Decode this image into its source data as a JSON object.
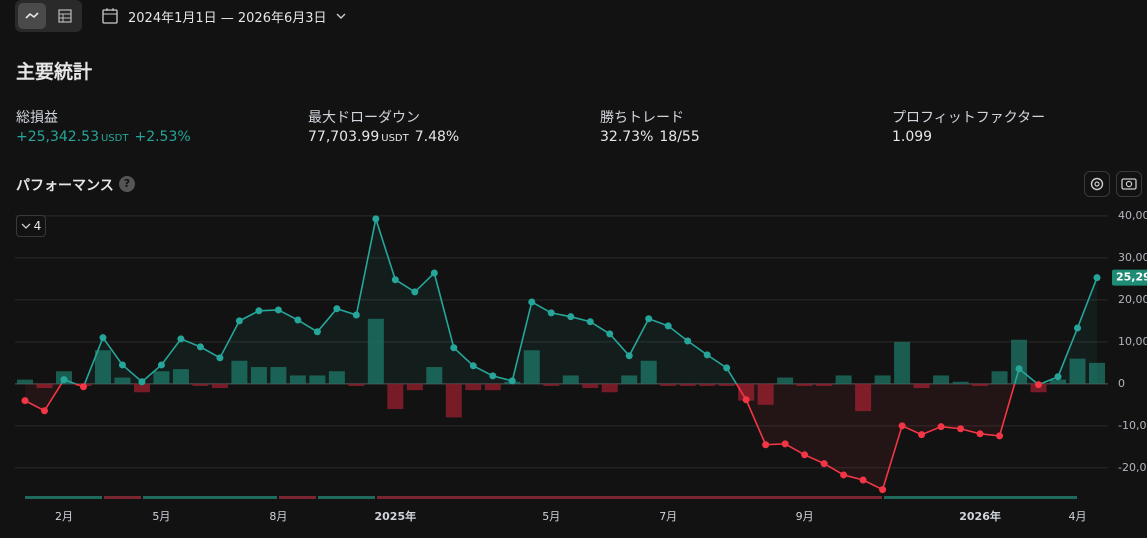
{
  "toolbar": {
    "date_range": "2024年1月1日 — 2026年6月3日"
  },
  "stats": {
    "title": "主要統計",
    "items": [
      {
        "label": "総損益",
        "value": "+25,342.53",
        "unit": "USDT",
        "change": "+2.53%"
      },
      {
        "label": "最大ドローダウン",
        "value": "77,703.99",
        "unit": "USDT",
        "change": "7.48%"
      },
      {
        "label": "勝ちトレード",
        "value": "32.73%",
        "change": "18/55"
      },
      {
        "label": "プロフィットファクター",
        "value": "1.099"
      }
    ]
  },
  "performance": {
    "title": "パフォーマンス",
    "help": "?",
    "selector": "4"
  },
  "chart_data": {
    "type": "line",
    "categories": [
      null,
      null,
      "2月",
      null,
      null,
      null,
      null,
      "5月",
      null,
      null,
      null,
      null,
      null,
      "8月",
      null,
      null,
      null,
      null,
      null,
      "2025年",
      null,
      null,
      null,
      null,
      null,
      null,
      null,
      "5月",
      null,
      null,
      null,
      null,
      null,
      "7月",
      null,
      null,
      null,
      null,
      null,
      null,
      "9月",
      null,
      null,
      null,
      null,
      null,
      null,
      null,
      null,
      "2026年",
      null,
      null,
      null,
      null,
      "4月",
      null
    ],
    "values": [
      -4000,
      -6400,
      1000,
      -700,
      11000,
      4500,
      500,
      4500,
      10700,
      8800,
      6200,
      15000,
      17400,
      17600,
      15200,
      12400,
      17900,
      16400,
      39300,
      24800,
      21900,
      26400,
      8600,
      4300,
      1900,
      700,
      19500,
      16900,
      16000,
      14800,
      11900,
      6700,
      15500,
      13800,
      10200,
      6900,
      3800,
      -3800,
      -14500,
      -14300,
      -16900,
      -19000,
      -21700,
      -22900,
      -25200,
      -10000,
      -12100,
      -10200,
      -10700,
      -11900,
      -12400,
      3600,
      -200,
      1700,
      13300,
      25290
    ],
    "value_labels": [
      null,
      null,
      null,
      null,
      null,
      null,
      null,
      null,
      null,
      null,
      null,
      null,
      null,
      null,
      null,
      null,
      null,
      null,
      null,
      null,
      null,
      null,
      null,
      null,
      null,
      null,
      null,
      null,
      null,
      null,
      null,
      null,
      null,
      null,
      null,
      null,
      null,
      null,
      null,
      null,
      null,
      null,
      null,
      null,
      null,
      null,
      null,
      null,
      null,
      null,
      null,
      null,
      null,
      null,
      null,
      "25,29"
    ],
    "trade_values": [
      1000,
      -1000,
      3000,
      -500,
      8000,
      1500,
      -2000,
      3000,
      3500,
      -500,
      -1000,
      5500,
      4000,
      4000,
      2000,
      2000,
      3000,
      -500,
      15500,
      -6000,
      -1500,
      4000,
      -8000,
      -1500,
      -1500,
      500,
      8000,
      -500,
      2000,
      -1000,
      -2000,
      2000,
      5500,
      -500,
      -500,
      -500,
      -500,
      -4000,
      -5000,
      1500,
      -500,
      -500,
      2000,
      -6500,
      2000,
      10000,
      -1000,
      2000,
      500,
      -500,
      3000,
      10500,
      -2000,
      1000,
      6000,
      5000
    ],
    "color_up": "#26a69a",
    "color_down": "#f23645",
    "ylim": [
      -26000,
      42600
    ],
    "yticks": [
      {
        "value": 40000,
        "label": "40,00"
      },
      {
        "value": 30000,
        "label": "30,00"
      },
      {
        "value": 20000,
        "label": "20,00"
      },
      {
        "value": 10000,
        "label": "10,00"
      },
      0,
      {
        "value": -10000,
        "label": "-10,0"
      },
      {
        "value": -20000,
        "label": "-20,0"
      }
    ],
    "grid": true
  }
}
